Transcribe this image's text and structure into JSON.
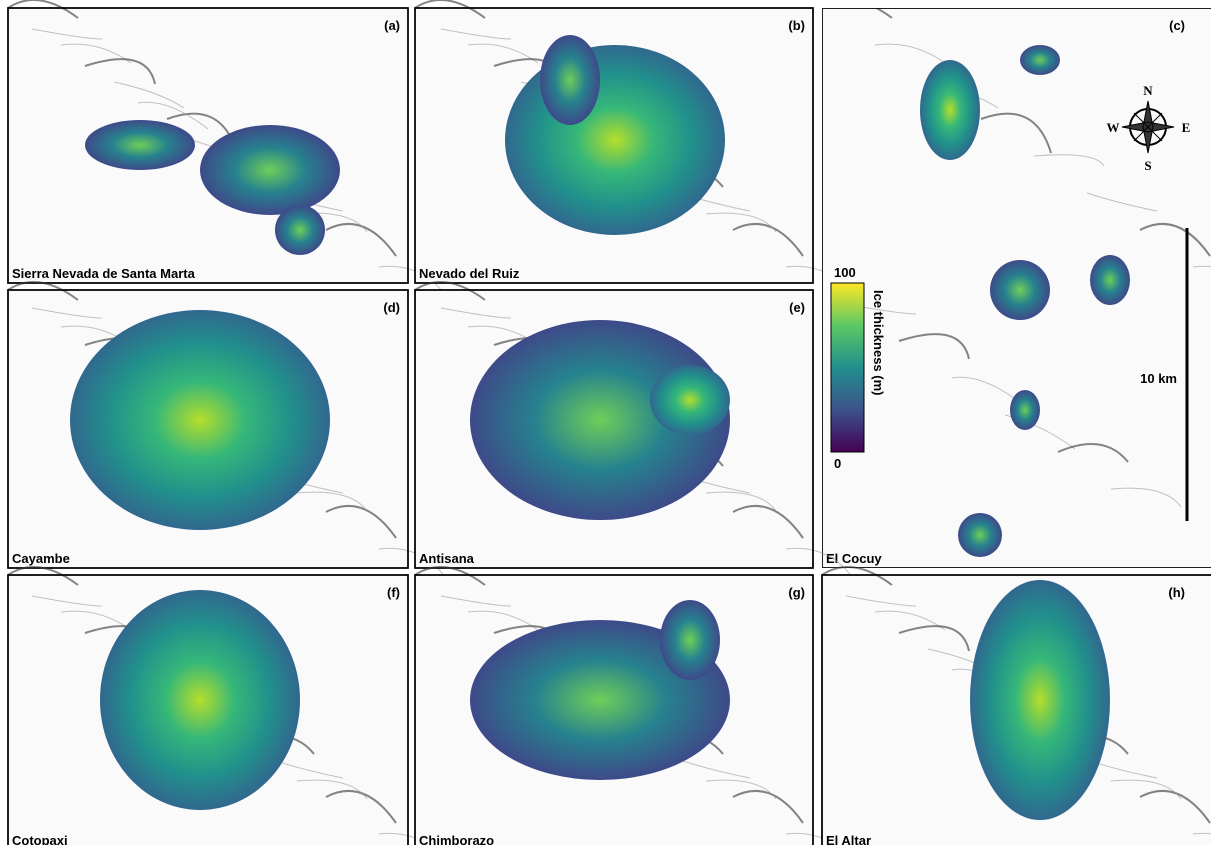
{
  "panels": [
    {
      "letter": "(a)",
      "name": "Sierra Nevada de Santa Marta"
    },
    {
      "letter": "(b)",
      "name": "Nevado del Ruiz"
    },
    {
      "letter": "(c)",
      "name": "El Cocuy"
    },
    {
      "letter": "(d)",
      "name": "Cayambe"
    },
    {
      "letter": "(e)",
      "name": "Antisana"
    },
    {
      "letter": "(f)",
      "name": "Cotopaxi"
    },
    {
      "letter": "(g)",
      "name": "Chimborazo"
    },
    {
      "letter": "(h)",
      "name": "El Altar"
    }
  ],
  "colorbar": {
    "label": "Ice thickness (m)",
    "lim": [
      0,
      100
    ],
    "ticks": [
      0,
      100
    ]
  },
  "compass": {
    "n": "N",
    "e": "E",
    "s": "S",
    "w": "W"
  },
  "scale_bar": "10 km"
}
